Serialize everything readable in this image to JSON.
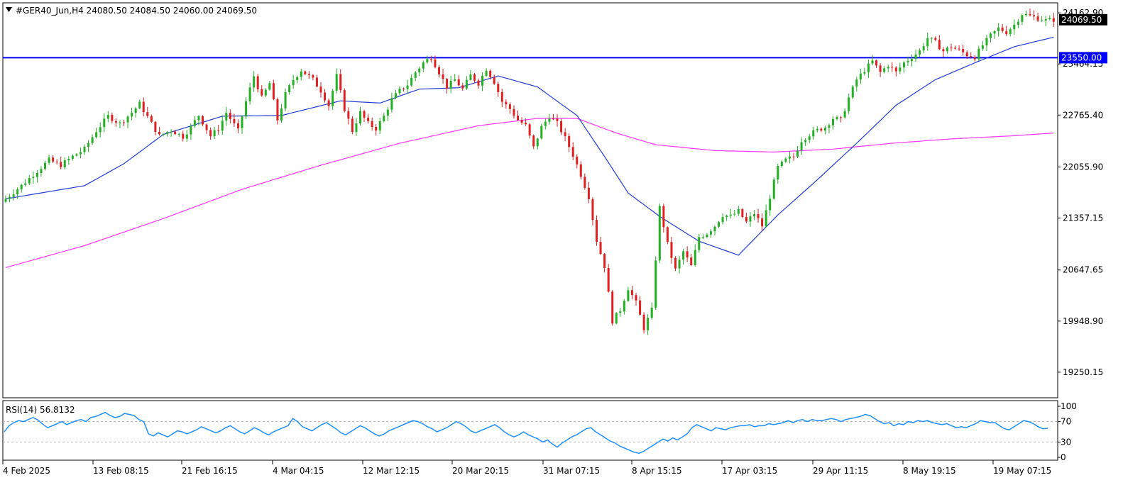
{
  "chart_data": [
    {
      "type": "candlestick",
      "symbol_line": "#GER40_Jun,H4",
      "ohlc": {
        "open": "24080.50",
        "high": "24084.50",
        "low": "24060.00",
        "close": "24069.50"
      },
      "ylim": [
        18900,
        24300
      ],
      "y_ticks": [
        {
          "value": 24162.9,
          "label": "24162.90"
        },
        {
          "value": 23464.15,
          "label": "23464.15"
        },
        {
          "value": 22765.4,
          "label": "22765.40"
        },
        {
          "value": 22055.9,
          "label": "22055.90"
        },
        {
          "value": 21357.15,
          "label": "21357.15"
        },
        {
          "value": 20647.65,
          "label": "20647.65"
        },
        {
          "value": 19948.9,
          "label": "19948.90"
        },
        {
          "value": 19250.15,
          "label": "19250.15"
        }
      ],
      "x_labels": [
        "4 Feb 2025",
        "13 Feb 08:15",
        "21 Feb 16:15",
        "4 Mar 04:15",
        "12 Mar 12:15",
        "20 Mar 20:15",
        "31 Mar 07:15",
        "8 Apr 15:15",
        "17 Apr 03:15",
        "29 Apr 11:15",
        "8 May 19:15",
        "19 May 07:15"
      ],
      "horizontal_line": {
        "value": 23550.0,
        "label": "23550.00",
        "color": "#0000ff"
      },
      "last_price": {
        "value": 24069.5,
        "label": "24069.50",
        "color": "#000000"
      },
      "colors": {
        "bull": "#22b022",
        "bear": "#e02020",
        "ma_fast": "#1f3bd6",
        "ma_slow": "#ff33ff"
      },
      "price_path": [
        [
          0,
          21620
        ],
        [
          4,
          21800
        ],
        [
          8,
          22000
        ],
        [
          11,
          22150
        ],
        [
          14,
          22080
        ],
        [
          17,
          22200
        ],
        [
          20,
          22300
        ],
        [
          23,
          22550
        ],
        [
          26,
          22750
        ],
        [
          29,
          22650
        ],
        [
          32,
          22800
        ],
        [
          34,
          22920
        ],
        [
          37,
          22650
        ],
        [
          39,
          22480
        ],
        [
          42,
          22560
        ],
        [
          45,
          22470
        ],
        [
          47,
          22600
        ],
        [
          49,
          22760
        ],
        [
          52,
          22480
        ],
        [
          54,
          22580
        ],
        [
          56,
          22800
        ],
        [
          59,
          22550
        ],
        [
          61,
          22950
        ],
        [
          63,
          23300
        ],
        [
          65,
          23000
        ],
        [
          67,
          23200
        ],
        [
          69,
          22700
        ],
        [
          71,
          23050
        ],
        [
          73,
          23250
        ],
        [
          75,
          23380
        ],
        [
          78,
          23250
        ],
        [
          80,
          23100
        ],
        [
          82,
          22900
        ],
        [
          84,
          23300
        ],
        [
          86,
          22850
        ],
        [
          88,
          22550
        ],
        [
          90,
          22800
        ],
        [
          92,
          22650
        ],
        [
          94,
          22580
        ],
        [
          96,
          22750
        ],
        [
          98,
          22980
        ],
        [
          100,
          23100
        ],
        [
          102,
          23180
        ],
        [
          104,
          23350
        ],
        [
          106,
          23480
        ],
        [
          108,
          23560
        ],
        [
          110,
          23350
        ],
        [
          112,
          23150
        ],
        [
          114,
          23250
        ],
        [
          116,
          23120
        ],
        [
          118,
          23310
        ],
        [
          120,
          23200
        ],
        [
          122,
          23400
        ],
        [
          124,
          23220
        ],
        [
          126,
          22950
        ],
        [
          128,
          22850
        ],
        [
          130,
          22700
        ],
        [
          132,
          22620
        ],
        [
          134,
          22320
        ],
        [
          136,
          22600
        ],
        [
          138,
          22750
        ],
        [
          140,
          22650
        ],
        [
          142,
          22450
        ],
        [
          144,
          22220
        ],
        [
          146,
          21950
        ],
        [
          148,
          21650
        ],
        [
          150,
          21050
        ],
        [
          152,
          20700
        ],
        [
          154,
          19950
        ],
        [
          156,
          20100
        ],
        [
          158,
          20400
        ],
        [
          160,
          20200
        ],
        [
          162,
          19850
        ],
        [
          164,
          20100
        ],
        [
          166,
          21500
        ],
        [
          168,
          21000
        ],
        [
          170,
          20650
        ],
        [
          172,
          20900
        ],
        [
          174,
          20700
        ],
        [
          176,
          21100
        ],
        [
          178,
          21150
        ],
        [
          180,
          21250
        ],
        [
          182,
          21400
        ],
        [
          184,
          21380
        ],
        [
          186,
          21450
        ],
        [
          188,
          21300
        ],
        [
          190,
          21420
        ],
        [
          192,
          21250
        ],
        [
          194,
          21650
        ],
        [
          196,
          22050
        ],
        [
          198,
          22150
        ],
        [
          200,
          22200
        ],
        [
          202,
          22420
        ],
        [
          204,
          22500
        ],
        [
          206,
          22560
        ],
        [
          208,
          22600
        ],
        [
          210,
          22720
        ],
        [
          212,
          22700
        ],
        [
          214,
          23000
        ],
        [
          216,
          23250
        ],
        [
          218,
          23380
        ],
        [
          220,
          23500
        ],
        [
          222,
          23350
        ],
        [
          224,
          23450
        ],
        [
          226,
          23350
        ],
        [
          228,
          23480
        ],
        [
          230,
          23560
        ],
        [
          232,
          23640
        ],
        [
          234,
          23820
        ],
        [
          236,
          23760
        ],
        [
          238,
          23640
        ],
        [
          240,
          23700
        ],
        [
          242,
          23650
        ],
        [
          244,
          23590
        ],
        [
          246,
          23560
        ],
        [
          248,
          23720
        ],
        [
          250,
          23850
        ],
        [
          252,
          23950
        ],
        [
          254,
          23900
        ],
        [
          256,
          24000
        ],
        [
          258,
          24150
        ],
        [
          260,
          24120
        ],
        [
          262,
          24090
        ],
        [
          264,
          24060
        ],
        [
          266,
          24069
        ]
      ],
      "ma_fast_path": [
        [
          0,
          21620
        ],
        [
          20,
          21800
        ],
        [
          30,
          22100
        ],
        [
          40,
          22500
        ],
        [
          55,
          22750
        ],
        [
          70,
          22760
        ],
        [
          85,
          22960
        ],
        [
          95,
          22930
        ],
        [
          105,
          23120
        ],
        [
          115,
          23140
        ],
        [
          125,
          23300
        ],
        [
          135,
          23150
        ],
        [
          145,
          22760
        ],
        [
          152,
          22200
        ],
        [
          158,
          21700
        ],
        [
          166,
          21380
        ],
        [
          176,
          21040
        ],
        [
          186,
          20850
        ],
        [
          196,
          21400
        ],
        [
          206,
          21880
        ],
        [
          216,
          22380
        ],
        [
          226,
          22900
        ],
        [
          236,
          23250
        ],
        [
          246,
          23480
        ],
        [
          256,
          23700
        ],
        [
          266,
          23830
        ]
      ],
      "ma_slow_path": [
        [
          0,
          20680
        ],
        [
          20,
          20980
        ],
        [
          40,
          21350
        ],
        [
          60,
          21750
        ],
        [
          80,
          22080
        ],
        [
          100,
          22380
        ],
        [
          120,
          22620
        ],
        [
          135,
          22720
        ],
        [
          145,
          22720
        ],
        [
          155,
          22520
        ],
        [
          165,
          22360
        ],
        [
          180,
          22280
        ],
        [
          195,
          22260
        ],
        [
          210,
          22300
        ],
        [
          225,
          22380
        ],
        [
          240,
          22440
        ],
        [
          255,
          22480
        ],
        [
          266,
          22520
        ]
      ]
    },
    {
      "type": "line",
      "indicator": "RSI(14) 56.8132",
      "ylim": [
        0,
        100
      ],
      "y_ticks": [
        {
          "value": 100,
          "label": "100"
        },
        {
          "value": 70,
          "label": "70"
        },
        {
          "value": 30,
          "label": "30"
        },
        {
          "value": 0,
          "label": "0"
        }
      ],
      "levels": [
        70,
        30
      ],
      "color": "#1e90ff",
      "values": [
        50,
        62,
        68,
        72,
        70,
        74,
        78,
        73,
        65,
        58,
        62,
        66,
        70,
        64,
        68,
        72,
        74,
        70,
        78,
        80,
        84,
        88,
        82,
        78,
        80,
        86,
        84,
        82,
        74,
        70,
        46,
        42,
        48,
        44,
        40,
        46,
        52,
        50,
        46,
        50,
        54,
        60,
        56,
        52,
        48,
        52,
        58,
        62,
        56,
        50,
        46,
        52,
        58,
        54,
        48,
        44,
        50,
        54,
        58,
        62,
        76,
        70,
        60,
        56,
        52,
        58,
        64,
        68,
        62,
        56,
        48,
        44,
        50,
        56,
        62,
        58,
        52,
        46,
        42,
        46,
        52,
        56,
        60,
        64,
        68,
        72,
        70,
        66,
        60,
        56,
        50,
        54,
        58,
        64,
        70,
        66,
        60,
        52,
        48,
        52,
        56,
        60,
        64,
        58,
        50,
        44,
        40,
        44,
        50,
        44,
        40,
        36,
        30,
        34,
        26,
        20,
        28,
        34,
        40,
        44,
        50,
        56,
        58,
        50,
        44,
        38,
        32,
        28,
        22,
        18,
        14,
        10,
        8,
        12,
        18,
        24,
        30,
        36,
        32,
        38,
        34,
        40,
        46,
        58,
        64,
        60,
        56,
        52,
        58,
        56,
        54,
        58,
        60,
        62,
        62,
        64,
        60,
        62,
        62,
        66,
        64,
        66,
        68,
        72,
        68,
        72,
        74,
        70,
        74,
        72,
        72,
        74,
        76,
        74,
        70,
        74,
        76,
        78,
        80,
        84,
        82,
        76,
        70,
        66,
        68,
        62,
        66,
        64,
        70,
        68,
        72,
        70,
        72,
        68,
        66,
        64,
        66,
        62,
        58,
        60,
        58,
        62,
        66,
        72,
        70,
        68,
        68,
        62,
        56,
        54,
        60,
        66,
        72,
        70,
        66,
        60,
        56,
        57
      ]
    }
  ]
}
